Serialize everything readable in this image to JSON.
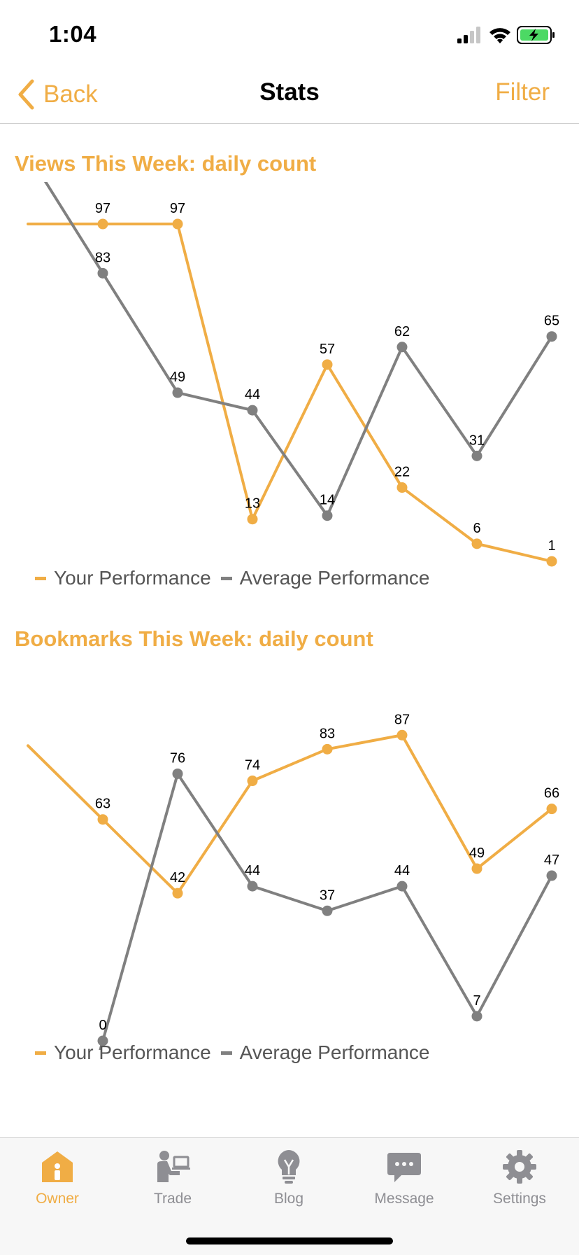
{
  "status_bar": {
    "time": "1:04"
  },
  "nav": {
    "back_label": "Back",
    "title": "Stats",
    "filter_label": "Filter"
  },
  "colors": {
    "accent": "#f0ad45",
    "average": "#808080",
    "tab_inactive": "#8e8e93"
  },
  "charts": [
    {
      "title": "Views This Week: daily count",
      "legend": [
        "Your Performance",
        "Average Performance"
      ]
    },
    {
      "title": "Bookmarks This Week: daily count",
      "legend": [
        "Your Performance",
        "Average Performance"
      ]
    }
  ],
  "chart_data": [
    {
      "type": "line",
      "title": "Views This Week: daily count",
      "ylim": [
        0,
        100
      ],
      "series": [
        {
          "name": "Your Performance",
          "color": "#f0ad45",
          "values": [
            97,
            97,
            13,
            57,
            22,
            6,
            1
          ]
        },
        {
          "name": "Average Performance",
          "color": "#808080",
          "values": [
            83,
            49,
            44,
            14,
            62,
            31,
            65
          ]
        }
      ]
    },
    {
      "type": "line",
      "title": "Bookmarks This Week: daily count",
      "ylim": [
        0,
        100
      ],
      "series": [
        {
          "name": "Your Performance",
          "color": "#f0ad45",
          "values": [
            63,
            42,
            74,
            83,
            87,
            49,
            66
          ]
        },
        {
          "name": "Average Performance",
          "color": "#808080",
          "values": [
            0,
            76,
            44,
            37,
            44,
            7,
            47
          ]
        }
      ]
    }
  ],
  "tabs": [
    {
      "label": "Owner",
      "icon": "house-person-icon",
      "active": true
    },
    {
      "label": "Trade",
      "icon": "person-laptop-icon",
      "active": false
    },
    {
      "label": "Blog",
      "icon": "lightbulb-icon",
      "active": false
    },
    {
      "label": "Message",
      "icon": "chat-bubble-icon",
      "active": false
    },
    {
      "label": "Settings",
      "icon": "gear-icon",
      "active": false
    }
  ]
}
